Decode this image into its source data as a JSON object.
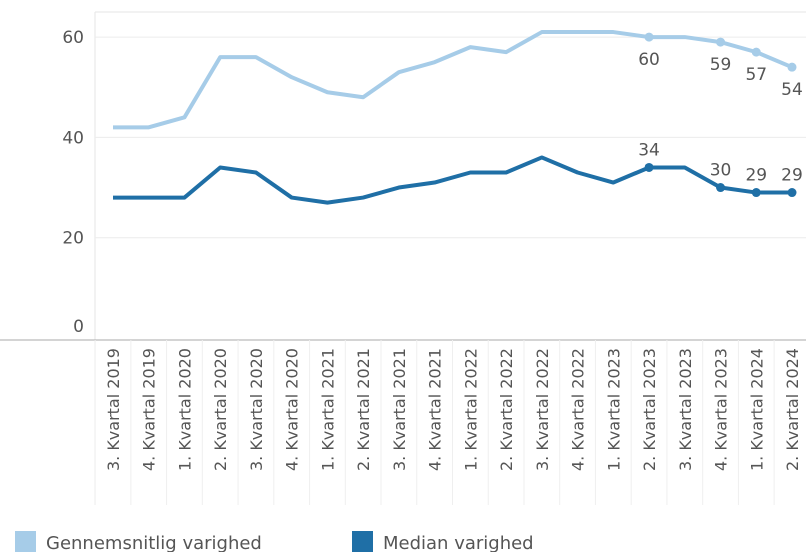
{
  "chart_data": {
    "type": "line",
    "categories": [
      "3. Kvartal 2019",
      "4. Kvartal 2019",
      "1. Kvartal 2020",
      "2. Kvartal 2020",
      "3. Kvartal 2020",
      "4. Kvartal 2020",
      "1. Kvartal 2021",
      "2. Kvartal 2021",
      "3. Kvartal 2021",
      "4. Kvartal 2021",
      "1. Kvartal 2022",
      "2. Kvartal 2022",
      "3. Kvartal 2022",
      "4. Kvartal 2022",
      "1. Kvartal 2023",
      "2. Kvartal 2023",
      "3. Kvartal 2023",
      "4. Kvartal 2023",
      "1. Kvartal 2024",
      "2. Kvartal 2024"
    ],
    "series": [
      {
        "name": "Gennemsnitlig varighed",
        "color": "#a6cce8",
        "values": [
          42,
          42,
          44,
          56,
          56,
          52,
          49,
          48,
          53,
          55,
          58,
          57,
          61,
          61,
          61,
          60,
          60,
          59,
          57,
          54
        ],
        "value_labels": [
          null,
          null,
          null,
          null,
          null,
          null,
          null,
          null,
          null,
          null,
          null,
          null,
          null,
          null,
          null,
          "60",
          null,
          "59",
          "57",
          "54"
        ]
      },
      {
        "name": "Median varighed",
        "color": "#1f6fa6",
        "values": [
          28,
          28,
          28,
          34,
          33,
          28,
          27,
          28,
          30,
          31,
          33,
          33,
          36,
          33,
          31,
          34,
          34,
          30,
          29,
          29
        ],
        "value_labels": [
          null,
          null,
          null,
          null,
          null,
          null,
          null,
          null,
          null,
          null,
          null,
          null,
          null,
          null,
          null,
          "34",
          null,
          "30",
          "29",
          "29"
        ]
      }
    ],
    "ylim": [
      0,
      65
    ],
    "yticks": [
      0,
      20,
      40,
      60
    ],
    "grid": true
  }
}
